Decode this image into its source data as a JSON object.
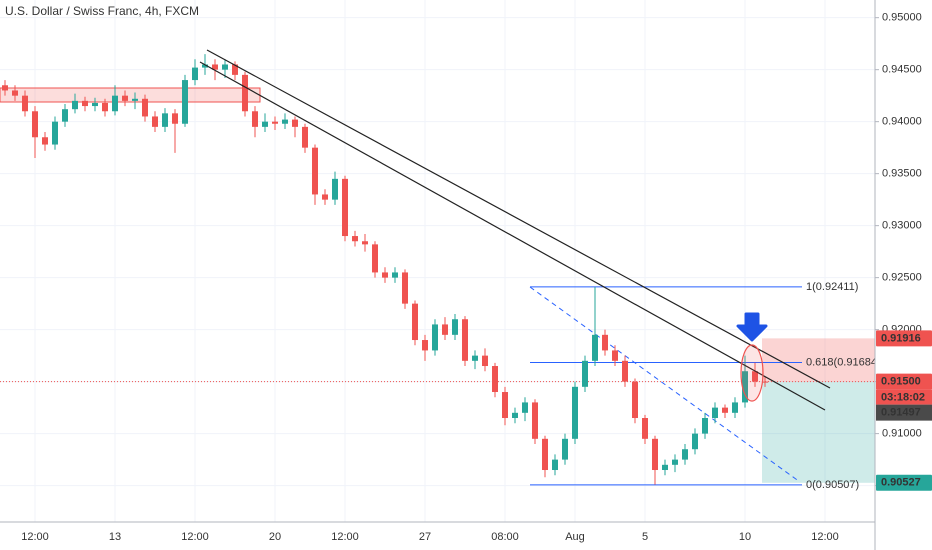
{
  "chart_data": {
    "type": "candlestick",
    "title": "U.S. Dollar / Swiss Franc, 4h, FXCM",
    "categories": [
      null,
      null,
      null,
      "12:00",
      null,
      null,
      null,
      null,
      null,
      null,
      null,
      "13",
      null,
      null,
      null,
      null,
      null,
      null,
      null,
      "12:00",
      null,
      null,
      null,
      null,
      null,
      null,
      null,
      "20",
      null,
      null,
      null,
      null,
      null,
      null,
      "12:00",
      null,
      null,
      null,
      null,
      null,
      null,
      null,
      "27",
      null,
      null,
      null,
      null,
      null,
      null,
      null,
      "08:00",
      null,
      null,
      null,
      null,
      null,
      null,
      "Aug",
      null,
      null,
      null,
      null,
      null,
      null,
      "5",
      null,
      null,
      null,
      null,
      null,
      null,
      null,
      null,
      null,
      "10",
      null,
      null,
      null,
      null,
      null,
      null,
      null,
      "12:00",
      null
    ],
    "ohlc": [
      [
        0.9435,
        0.944,
        0.9425,
        0.943
      ],
      [
        0.943,
        0.9435,
        0.942,
        0.9425
      ],
      [
        0.9425,
        0.943,
        0.9405,
        0.941
      ],
      [
        0.941,
        0.9415,
        0.9365,
        0.9385
      ],
      [
        0.9385,
        0.939,
        0.9372,
        0.9378
      ],
      [
        0.9378,
        0.9405,
        0.9373,
        0.94
      ],
      [
        0.94,
        0.9417,
        0.9395,
        0.9412
      ],
      [
        0.9412,
        0.9427,
        0.9408,
        0.942
      ],
      [
        0.942,
        0.9424,
        0.941,
        0.9415
      ],
      [
        0.9415,
        0.9423,
        0.941,
        0.9418
      ],
      [
        0.9418,
        0.9422,
        0.9405,
        0.941
      ],
      [
        0.941,
        0.9435,
        0.9406,
        0.9425
      ],
      [
        0.9425,
        0.943,
        0.9415,
        0.942
      ],
      [
        0.942,
        0.9428,
        0.9412,
        0.9422
      ],
      [
        0.9422,
        0.9426,
        0.94,
        0.9405
      ],
      [
        0.9405,
        0.941,
        0.939,
        0.9395
      ],
      [
        0.9395,
        0.9413,
        0.939,
        0.9408
      ],
      [
        0.9408,
        0.9412,
        0.937,
        0.9398
      ],
      [
        0.9398,
        0.9445,
        0.9395,
        0.944
      ],
      [
        0.944,
        0.946,
        0.9435,
        0.9452
      ],
      [
        0.9452,
        0.9465,
        0.9445,
        0.9455
      ],
      [
        0.9455,
        0.946,
        0.944,
        0.945
      ],
      [
        0.945,
        0.946,
        0.9442,
        0.9455
      ],
      [
        0.9455,
        0.9458,
        0.944,
        0.9445
      ],
      [
        0.9445,
        0.9448,
        0.9405,
        0.941
      ],
      [
        0.941,
        0.9415,
        0.9385,
        0.9395
      ],
      [
        0.9395,
        0.9408,
        0.939,
        0.94
      ],
      [
        0.94,
        0.9405,
        0.9392,
        0.9398
      ],
      [
        0.9398,
        0.9408,
        0.9393,
        0.9402
      ],
      [
        0.9402,
        0.9405,
        0.9385,
        0.9395
      ],
      [
        0.9395,
        0.9398,
        0.937,
        0.9375
      ],
      [
        0.9375,
        0.9378,
        0.932,
        0.933
      ],
      [
        0.933,
        0.9335,
        0.932,
        0.9325
      ],
      [
        0.9325,
        0.9352,
        0.932,
        0.9345
      ],
      [
        0.9345,
        0.9348,
        0.9285,
        0.929
      ],
      [
        0.929,
        0.9295,
        0.928,
        0.9285
      ],
      [
        0.9285,
        0.9292,
        0.9275,
        0.9282
      ],
      [
        0.9282,
        0.9285,
        0.925,
        0.9255
      ],
      [
        0.9255,
        0.926,
        0.9245,
        0.925
      ],
      [
        0.925,
        0.926,
        0.9245,
        0.9255
      ],
      [
        0.9255,
        0.9258,
        0.922,
        0.9225
      ],
      [
        0.9225,
        0.9228,
        0.9185,
        0.919
      ],
      [
        0.919,
        0.9195,
        0.917,
        0.918
      ],
      [
        0.918,
        0.921,
        0.9175,
        0.9205
      ],
      [
        0.9205,
        0.9212,
        0.919,
        0.9195
      ],
      [
        0.9195,
        0.9215,
        0.919,
        0.921
      ],
      [
        0.921,
        0.9213,
        0.9165,
        0.917
      ],
      [
        0.917,
        0.918,
        0.9162,
        0.9175
      ],
      [
        0.9175,
        0.9182,
        0.916,
        0.9165
      ],
      [
        0.9165,
        0.9168,
        0.9135,
        0.914
      ],
      [
        0.914,
        0.9145,
        0.9108,
        0.9115
      ],
      [
        0.9115,
        0.9125,
        0.911,
        0.912
      ],
      [
        0.912,
        0.9135,
        0.9112,
        0.913
      ],
      [
        0.913,
        0.9133,
        0.909,
        0.9095
      ],
      [
        0.9095,
        0.9098,
        0.9058,
        0.9065
      ],
      [
        0.9065,
        0.908,
        0.906,
        0.9075
      ],
      [
        0.9075,
        0.91,
        0.907,
        0.9095
      ],
      [
        0.9095,
        0.915,
        0.909,
        0.9145
      ],
      [
        0.9145,
        0.9175,
        0.914,
        0.917
      ],
      [
        0.917,
        0.9241,
        0.9165,
        0.9195
      ],
      [
        0.9195,
        0.92,
        0.9175,
        0.918
      ],
      [
        0.918,
        0.9185,
        0.9165,
        0.917
      ],
      [
        0.917,
        0.9175,
        0.9145,
        0.915
      ],
      [
        0.915,
        0.9153,
        0.911,
        0.9115
      ],
      [
        0.9115,
        0.9118,
        0.909,
        0.9095
      ],
      [
        0.9095,
        0.9098,
        0.9051,
        0.9065
      ],
      [
        0.9065,
        0.9075,
        0.906,
        0.907
      ],
      [
        0.907,
        0.908,
        0.9063,
        0.9075
      ],
      [
        0.9075,
        0.909,
        0.907,
        0.9085
      ],
      [
        0.9085,
        0.9105,
        0.908,
        0.91
      ],
      [
        0.91,
        0.912,
        0.9095,
        0.9115
      ],
      [
        0.9115,
        0.913,
        0.911,
        0.9125
      ],
      [
        0.9125,
        0.9128,
        0.9115,
        0.912
      ],
      [
        0.912,
        0.9135,
        0.9115,
        0.913
      ],
      [
        0.913,
        0.9175,
        0.9125,
        0.916
      ],
      [
        0.916,
        0.9168,
        0.9145,
        0.915
      ],
      [
        0.915,
        0.9155,
        0.9145,
        0.91497
      ],
      null,
      null,
      null,
      null,
      null,
      null,
      null
    ],
    "up_color": "#26a69a",
    "down_color": "#ef5350",
    "ylim": [
      0.9015,
      0.9517
    ],
    "yticks": [
      {
        "value": 0.905,
        "label": "0.90500"
      },
      {
        "value": 0.91,
        "label": "0.91000"
      },
      {
        "value": 0.915,
        "label": "0.91500"
      },
      {
        "value": 0.92,
        "label": "0.92000"
      },
      {
        "value": 0.925,
        "label": "0.92500"
      },
      {
        "value": 0.93,
        "label": "0.93000"
      },
      {
        "value": 0.935,
        "label": "0.93500"
      },
      {
        "value": 0.94,
        "label": "0.94000"
      },
      {
        "value": 0.945,
        "label": "0.94500"
      },
      {
        "value": 0.95,
        "label": "0.95000"
      }
    ],
    "grid": true,
    "fib": [
      {
        "value": 0.92411,
        "label": "1(0.92411)"
      },
      {
        "value": 0.91684,
        "label": "0.618(0.91684)"
      },
      {
        "value": 0.90507,
        "label": "0(0.90507)"
      }
    ],
    "position": {
      "stop": {
        "value": 0.91916
      },
      "entry": {
        "value": 0.915,
        "label": "0.91500"
      },
      "target": {
        "value": 0.90527
      }
    },
    "last_price": {
      "value": 0.91497
    },
    "countdown": "03:18:02"
  }
}
